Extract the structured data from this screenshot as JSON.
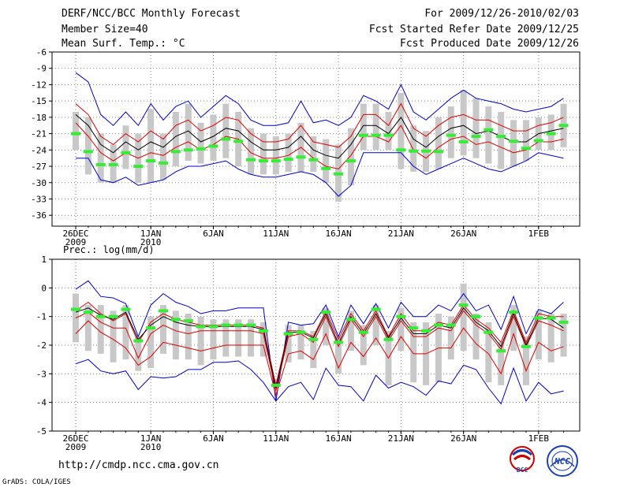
{
  "header": {
    "title": "DERF/NCC/BCC Monthly Forecast",
    "member_size": "Member Size=40",
    "variable": "Mean Surf. Temp.: °C",
    "period": "For 2009/12/26-2010/02/03",
    "start_date": "Fcst Started Refer Date 2009/12/25",
    "produced_date": "Fcst Produced Date 2009/12/26"
  },
  "footer": {
    "url": "http://cmdp.ncc.cma.gov.cn",
    "grads": "GrADS: COLA/IGES",
    "logo_bcc": "BCC",
    "logo_ncc": "NCC"
  },
  "colors": {
    "envelope": "#0000cc",
    "spread": "#dd0000",
    "mean": "#000000",
    "box": "#c8c8c8",
    "median": "#33ee33",
    "grid": "#888888"
  },
  "chart_data": [
    {
      "type": "line",
      "title": "Mean Surf. Temp.: °C",
      "ylim": [
        -38,
        -6
      ],
      "yticks": [
        "-6",
        "-9",
        "-12",
        "-15",
        "-18",
        "-21",
        "-24",
        "-27",
        "-30",
        "-33",
        "-36"
      ],
      "xticks": [
        {
          "day": 0,
          "label": "26DEC",
          "sub": "2009"
        },
        {
          "day": 6,
          "label": "1JAN",
          "sub": "2010"
        },
        {
          "day": 11,
          "label": "6JAN",
          "sub": ""
        },
        {
          "day": 16,
          "label": "11JAN",
          "sub": ""
        },
        {
          "day": 21,
          "label": "16JAN",
          "sub": ""
        },
        {
          "day": 26,
          "label": "21JAN",
          "sub": ""
        },
        {
          "day": 31,
          "label": "26JAN",
          "sub": ""
        },
        {
          "day": 37,
          "label": "1FEB",
          "sub": ""
        }
      ],
      "days": 40,
      "series": [
        {
          "name": "max",
          "values": [
            -9.8,
            -11.5,
            -17.5,
            -19.5,
            -17,
            -19.5,
            -15.5,
            -18.5,
            -16,
            -15,
            -18,
            -16,
            -14,
            -15.5,
            -18.5,
            -19.5,
            -19.5,
            -19,
            -15,
            -19,
            -18.5,
            -19.5,
            -18,
            -14,
            -15,
            -16.5,
            -12,
            -17,
            -18.5,
            -16.5,
            -14.5,
            -13,
            -14.5,
            -15,
            -15.5,
            -16.5,
            -17,
            -16.5,
            -16,
            -14.5
          ]
        },
        {
          "name": "upper",
          "values": [
            -15.5,
            -17.5,
            -21.5,
            -23,
            -21,
            -22.5,
            -20.5,
            -22,
            -19.5,
            -18.5,
            -20.5,
            -19.5,
            -18,
            -18.5,
            -21,
            -22.5,
            -22.5,
            -22,
            -19.5,
            -22.5,
            -23,
            -23.5,
            -21.5,
            -17.5,
            -17.5,
            -19.5,
            -15.5,
            -20,
            -21.5,
            -19.5,
            -18,
            -17.5,
            -18.5,
            -18.5,
            -19.5,
            -20.5,
            -20.5,
            -19.5,
            -19,
            -18
          ]
        },
        {
          "name": "mean",
          "values": [
            -17.5,
            -19.5,
            -23,
            -24.5,
            -22.5,
            -24,
            -22.5,
            -23.5,
            -21.5,
            -20.5,
            -22.5,
            -21.5,
            -20,
            -20.5,
            -22.5,
            -24,
            -24,
            -23.5,
            -21.5,
            -24,
            -25,
            -25.5,
            -23,
            -19.5,
            -19.5,
            -21,
            -18,
            -22,
            -23.5,
            -21.5,
            -20,
            -19.5,
            -21,
            -20.5,
            -21.5,
            -22.5,
            -22.5,
            -21,
            -20.5,
            -20
          ]
        },
        {
          "name": "lower",
          "values": [
            -19,
            -21.5,
            -24.5,
            -26,
            -24.5,
            -25.5,
            -24.5,
            -25,
            -23.5,
            -22.5,
            -24,
            -23,
            -21.5,
            -22,
            -24.5,
            -25.5,
            -25.5,
            -25,
            -23.5,
            -25.5,
            -27,
            -27.5,
            -25,
            -21.5,
            -21.5,
            -22.5,
            -19.5,
            -24,
            -25.5,
            -23.5,
            -22,
            -21.5,
            -23,
            -22.5,
            -23.5,
            -24.5,
            -24,
            -22.5,
            -22.5,
            -22
          ]
        },
        {
          "name": "min",
          "values": [
            -25.5,
            -25.5,
            -29.5,
            -30,
            -29,
            -30.5,
            -30,
            -29.5,
            -28,
            -27,
            -27,
            -26.5,
            -26,
            -27.5,
            -28.5,
            -29,
            -29,
            -28.5,
            -28,
            -28.5,
            -30,
            -32.5,
            -30.5,
            -24.5,
            -24.5,
            -24.5,
            -24.5,
            -27,
            -28.5,
            -27.5,
            -26.5,
            -25.5,
            -26.5,
            -27.5,
            -28,
            -27,
            -26,
            -24.5,
            -25,
            -25.5
          ]
        },
        {
          "name": "median",
          "values": [
            -21,
            -24.3,
            -26.7,
            -26.7,
            -24.5,
            -27,
            -26,
            -26.4,
            -24.3,
            -24,
            -23.8,
            -23.3,
            -22,
            -22.4,
            -25.8,
            -26,
            -26,
            -25.7,
            -25.3,
            -25.8,
            -27.4,
            -28.4,
            -26,
            -21.3,
            -21.3,
            -21.3,
            -24,
            -24.2,
            -24.2,
            -24.3,
            -21.3,
            -22.5,
            -21.5,
            -20.3,
            -21.5,
            -22.4,
            -23.7,
            -22.3,
            -21,
            -19.5
          ]
        },
        {
          "name": "box_top",
          "values": [
            -17,
            -18,
            -21,
            -23,
            -19.5,
            -21,
            -16.5,
            -21,
            -17,
            -15.5,
            -19,
            -17.5,
            -15.5,
            -17,
            -20,
            -21,
            -21.5,
            -21,
            -19,
            -21.5,
            -22,
            -23,
            -20,
            -15.5,
            -15.5,
            -17,
            -13.5,
            -19.5,
            -20.5,
            -18,
            -16,
            -13,
            -14.5,
            -16,
            -17,
            -18.5,
            -18.5,
            -18,
            -17.5,
            -15.5
          ]
        },
        {
          "name": "box_bottom",
          "values": [
            -24,
            -28.5,
            -30,
            -30,
            -27.5,
            -30,
            -30,
            -29.5,
            -27,
            -26,
            -26.5,
            -26,
            -25.5,
            -27,
            -28.5,
            -28.5,
            -28.5,
            -28,
            -28,
            -28,
            -30,
            -33.5,
            -30.5,
            -24,
            -24,
            -24,
            -27.5,
            -28,
            -28,
            -27.5,
            -25.5,
            -25,
            -25.5,
            -26.5,
            -27.5,
            -27,
            -26,
            -24,
            -24,
            -23.5
          ]
        }
      ]
    },
    {
      "type": "line",
      "title": "Prec.: log(mm/d)",
      "ylim": [
        -5,
        1
      ],
      "yticks": [
        "1",
        "0",
        "-1",
        "-2",
        "-3",
        "-4",
        "-5"
      ],
      "xticks": [
        {
          "day": 0,
          "label": "26DEC",
          "sub": "2009"
        },
        {
          "day": 6,
          "label": "1JAN",
          "sub": "2010"
        },
        {
          "day": 11,
          "label": "6JAN",
          "sub": ""
        },
        {
          "day": 16,
          "label": "11JAN",
          "sub": ""
        },
        {
          "day": 21,
          "label": "16JAN",
          "sub": ""
        },
        {
          "day": 26,
          "label": "21JAN",
          "sub": ""
        },
        {
          "day": 31,
          "label": "26JAN",
          "sub": ""
        },
        {
          "day": 37,
          "label": "1FEB",
          "sub": ""
        }
      ],
      "days": 40,
      "series": [
        {
          "name": "max",
          "values": [
            -0.05,
            0.25,
            -0.3,
            -0.35,
            -0.55,
            -1.7,
            -0.6,
            -0.2,
            -0.5,
            -0.65,
            -0.9,
            -0.8,
            -0.8,
            -0.7,
            -0.7,
            -0.7,
            -3.95,
            -1.2,
            -1.3,
            -1.25,
            -0.6,
            -1.7,
            -0.6,
            -1.25,
            -0.55,
            -1.4,
            -0.5,
            -1,
            -1,
            -0.6,
            -0.8,
            -0.2,
            -0.8,
            -0.6,
            -1.45,
            -0.3,
            -1.6,
            -0.75,
            -0.9,
            -0.5
          ]
        },
        {
          "name": "upper",
          "values": [
            -0.8,
            -0.5,
            -0.9,
            -1.15,
            -0.9,
            -1.9,
            -1.2,
            -0.9,
            -1.1,
            -1.2,
            -1.3,
            -1.3,
            -1.3,
            -1.3,
            -1.3,
            -1.4,
            -3.4,
            -1.5,
            -1.5,
            -1.7,
            -0.8,
            -1.8,
            -0.9,
            -1.5,
            -0.8,
            -1.7,
            -0.9,
            -1.5,
            -1.5,
            -1.2,
            -1.3,
            -0.6,
            -1.1,
            -1.4,
            -1.9,
            -0.8,
            -1.9,
            -0.9,
            -1,
            -1
          ]
        },
        {
          "name": "mean",
          "values": [
            -0.85,
            -0.7,
            -0.95,
            -1.1,
            -0.85,
            -1.8,
            -1.3,
            -1,
            -1.2,
            -1.3,
            -1.35,
            -1.35,
            -1.35,
            -1.35,
            -1.35,
            -1.45,
            -3.5,
            -1.55,
            -1.55,
            -1.75,
            -0.9,
            -1.95,
            -1,
            -1.6,
            -0.9,
            -1.75,
            -1.05,
            -1.6,
            -1.6,
            -1.3,
            -1.4,
            -0.7,
            -1.2,
            -1.5,
            -2.05,
            -0.9,
            -2,
            -1.05,
            -1.1,
            -1.4
          ]
        },
        {
          "name": "lower",
          "values": [
            -1.05,
            -0.85,
            -1.2,
            -1.4,
            -1.4,
            -2.45,
            -1.6,
            -1.3,
            -1.5,
            -1.6,
            -1.5,
            -1.5,
            -1.5,
            -1.5,
            -1.5,
            -1.6,
            -3.6,
            -1.7,
            -1.6,
            -1.9,
            -1,
            -2.05,
            -1.1,
            -1.7,
            -1,
            -1.85,
            -1.15,
            -1.7,
            -1.7,
            -1.4,
            -1.5,
            -0.8,
            -1.3,
            -1.6,
            -2.15,
            -1,
            -2.05,
            -1.15,
            -1.3,
            -1.5
          ]
        },
        {
          "name": "lower2",
          "values": [
            -1.6,
            -1.15,
            -1.55,
            -1.8,
            -2.1,
            -2.7,
            -2.4,
            -1.9,
            -2,
            -2.1,
            -2.2,
            -2.1,
            -2,
            -2,
            -2,
            -2,
            -3.75,
            -2.3,
            -2.2,
            -2.5,
            -1.6,
            -2.8,
            -1.9,
            -2.4,
            -1.75,
            -2.45,
            -1.7,
            -2.3,
            -2.3,
            -2.1,
            -2.1,
            -1.4,
            -1.95,
            -2.3,
            -3,
            -1.6,
            -2.9,
            -1.9,
            -2.2,
            -2.05
          ]
        },
        {
          "name": "min",
          "values": [
            -2.65,
            -2.5,
            -2.9,
            -3,
            -2.9,
            -3.55,
            -3.1,
            -3.15,
            -3.1,
            -2.85,
            -2.85,
            -2.6,
            -2.6,
            -2.55,
            -2.85,
            -3.3,
            -3.95,
            -3.45,
            -3.3,
            -3.9,
            -2.8,
            -3.4,
            -3.45,
            -3.95,
            -3.05,
            -3.5,
            -3.3,
            -3.45,
            -3.75,
            -3.25,
            -3.35,
            -2.7,
            -2.85,
            -3.5,
            -4.05,
            -2.8,
            -3.95,
            -3.3,
            -3.7,
            -3.6
          ]
        },
        {
          "name": "median",
          "values": [
            -0.75,
            -0.85,
            -1,
            -1,
            -0.75,
            -1.85,
            -1.4,
            -0.8,
            -1.1,
            -1.15,
            -1.35,
            -1.35,
            -1.3,
            -1.3,
            -1.3,
            -1.5,
            -3.4,
            -1.6,
            -1.55,
            -1.8,
            -0.85,
            -1.9,
            -1.1,
            -1.55,
            -0.75,
            -1.8,
            -1,
            -1.4,
            -1.5,
            -1.3,
            -1.3,
            -0.6,
            -1,
            -1.55,
            -2.2,
            -0.85,
            -2.05,
            -1.05,
            -1.05,
            -1.2
          ]
        },
        {
          "name": "box_top",
          "values": [
            -0.2,
            -0.6,
            -0.6,
            -0.8,
            -0.6,
            -1.7,
            -1,
            -0.6,
            -0.8,
            -0.9,
            -1,
            -1.1,
            -1.1,
            -1.1,
            -1.1,
            -1.2,
            -3.2,
            -1.3,
            -1.3,
            -1.5,
            -0.7,
            -1.7,
            -0.8,
            -1.3,
            -0.6,
            -1.5,
            -0.7,
            -1.2,
            -1.2,
            -0.9,
            -1,
            0.15,
            -0.9,
            -1.2,
            -1.9,
            -0.6,
            -1.7,
            -0.8,
            -0.9,
            -0.9
          ]
        },
        {
          "name": "box_bottom",
          "values": [
            -1.9,
            -2.2,
            -2.3,
            -2.6,
            -2.5,
            -2.9,
            -2.8,
            -2.3,
            -2.5,
            -2.5,
            -2.7,
            -2.5,
            -2.4,
            -2.4,
            -2.4,
            -2.4,
            -3.5,
            -2.6,
            -2.5,
            -2.8,
            -2,
            -3,
            -2.2,
            -2.7,
            -2,
            -3.4,
            -2.2,
            -3.3,
            -3.4,
            -3.3,
            -2.5,
            -2.2,
            -2.5,
            -3.3,
            -3.4,
            -2.2,
            -3.4,
            -2.5,
            -2.6,
            -2.4
          ]
        }
      ]
    }
  ]
}
